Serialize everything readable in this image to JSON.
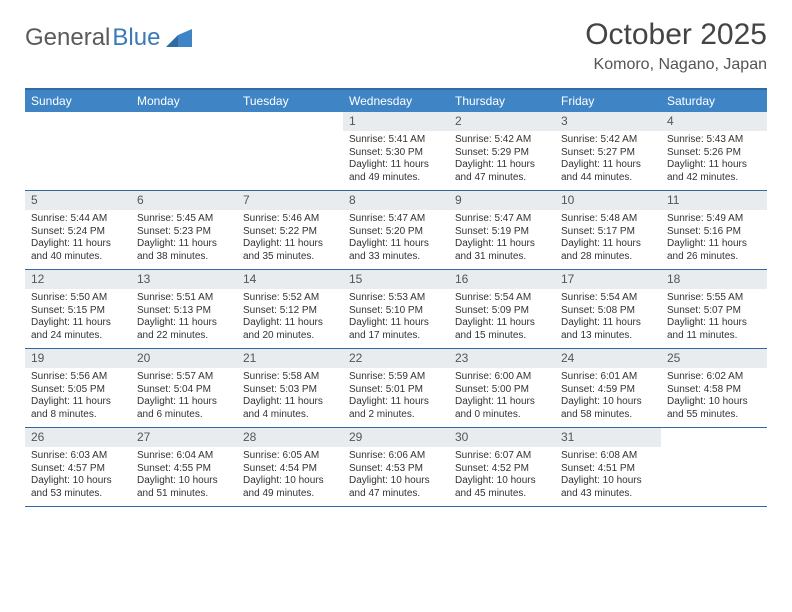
{
  "brand": {
    "word1": "General",
    "word2": "Blue"
  },
  "title": "October 2025",
  "location": "Komoro, Nagano, Japan",
  "colors": {
    "header_bg": "#3f85c6",
    "header_border": "#2f6aa3",
    "daynum_bg": "#e9ecef",
    "text": "#333333",
    "logo_gray": "#5a5a5a",
    "logo_blue": "#3a7ab8"
  },
  "days_of_week": [
    "Sunday",
    "Monday",
    "Tuesday",
    "Wednesday",
    "Thursday",
    "Friday",
    "Saturday"
  ],
  "weeks": [
    [
      {
        "n": "",
        "sr": "",
        "ss": "",
        "dl": ""
      },
      {
        "n": "",
        "sr": "",
        "ss": "",
        "dl": ""
      },
      {
        "n": "",
        "sr": "",
        "ss": "",
        "dl": ""
      },
      {
        "n": "1",
        "sr": "Sunrise: 5:41 AM",
        "ss": "Sunset: 5:30 PM",
        "dl": "Daylight: 11 hours and 49 minutes."
      },
      {
        "n": "2",
        "sr": "Sunrise: 5:42 AM",
        "ss": "Sunset: 5:29 PM",
        "dl": "Daylight: 11 hours and 47 minutes."
      },
      {
        "n": "3",
        "sr": "Sunrise: 5:42 AM",
        "ss": "Sunset: 5:27 PM",
        "dl": "Daylight: 11 hours and 44 minutes."
      },
      {
        "n": "4",
        "sr": "Sunrise: 5:43 AM",
        "ss": "Sunset: 5:26 PM",
        "dl": "Daylight: 11 hours and 42 minutes."
      }
    ],
    [
      {
        "n": "5",
        "sr": "Sunrise: 5:44 AM",
        "ss": "Sunset: 5:24 PM",
        "dl": "Daylight: 11 hours and 40 minutes."
      },
      {
        "n": "6",
        "sr": "Sunrise: 5:45 AM",
        "ss": "Sunset: 5:23 PM",
        "dl": "Daylight: 11 hours and 38 minutes."
      },
      {
        "n": "7",
        "sr": "Sunrise: 5:46 AM",
        "ss": "Sunset: 5:22 PM",
        "dl": "Daylight: 11 hours and 35 minutes."
      },
      {
        "n": "8",
        "sr": "Sunrise: 5:47 AM",
        "ss": "Sunset: 5:20 PM",
        "dl": "Daylight: 11 hours and 33 minutes."
      },
      {
        "n": "9",
        "sr": "Sunrise: 5:47 AM",
        "ss": "Sunset: 5:19 PM",
        "dl": "Daylight: 11 hours and 31 minutes."
      },
      {
        "n": "10",
        "sr": "Sunrise: 5:48 AM",
        "ss": "Sunset: 5:17 PM",
        "dl": "Daylight: 11 hours and 28 minutes."
      },
      {
        "n": "11",
        "sr": "Sunrise: 5:49 AM",
        "ss": "Sunset: 5:16 PM",
        "dl": "Daylight: 11 hours and 26 minutes."
      }
    ],
    [
      {
        "n": "12",
        "sr": "Sunrise: 5:50 AM",
        "ss": "Sunset: 5:15 PM",
        "dl": "Daylight: 11 hours and 24 minutes."
      },
      {
        "n": "13",
        "sr": "Sunrise: 5:51 AM",
        "ss": "Sunset: 5:13 PM",
        "dl": "Daylight: 11 hours and 22 minutes."
      },
      {
        "n": "14",
        "sr": "Sunrise: 5:52 AM",
        "ss": "Sunset: 5:12 PM",
        "dl": "Daylight: 11 hours and 20 minutes."
      },
      {
        "n": "15",
        "sr": "Sunrise: 5:53 AM",
        "ss": "Sunset: 5:10 PM",
        "dl": "Daylight: 11 hours and 17 minutes."
      },
      {
        "n": "16",
        "sr": "Sunrise: 5:54 AM",
        "ss": "Sunset: 5:09 PM",
        "dl": "Daylight: 11 hours and 15 minutes."
      },
      {
        "n": "17",
        "sr": "Sunrise: 5:54 AM",
        "ss": "Sunset: 5:08 PM",
        "dl": "Daylight: 11 hours and 13 minutes."
      },
      {
        "n": "18",
        "sr": "Sunrise: 5:55 AM",
        "ss": "Sunset: 5:07 PM",
        "dl": "Daylight: 11 hours and 11 minutes."
      }
    ],
    [
      {
        "n": "19",
        "sr": "Sunrise: 5:56 AM",
        "ss": "Sunset: 5:05 PM",
        "dl": "Daylight: 11 hours and 8 minutes."
      },
      {
        "n": "20",
        "sr": "Sunrise: 5:57 AM",
        "ss": "Sunset: 5:04 PM",
        "dl": "Daylight: 11 hours and 6 minutes."
      },
      {
        "n": "21",
        "sr": "Sunrise: 5:58 AM",
        "ss": "Sunset: 5:03 PM",
        "dl": "Daylight: 11 hours and 4 minutes."
      },
      {
        "n": "22",
        "sr": "Sunrise: 5:59 AM",
        "ss": "Sunset: 5:01 PM",
        "dl": "Daylight: 11 hours and 2 minutes."
      },
      {
        "n": "23",
        "sr": "Sunrise: 6:00 AM",
        "ss": "Sunset: 5:00 PM",
        "dl": "Daylight: 11 hours and 0 minutes."
      },
      {
        "n": "24",
        "sr": "Sunrise: 6:01 AM",
        "ss": "Sunset: 4:59 PM",
        "dl": "Daylight: 10 hours and 58 minutes."
      },
      {
        "n": "25",
        "sr": "Sunrise: 6:02 AM",
        "ss": "Sunset: 4:58 PM",
        "dl": "Daylight: 10 hours and 55 minutes."
      }
    ],
    [
      {
        "n": "26",
        "sr": "Sunrise: 6:03 AM",
        "ss": "Sunset: 4:57 PM",
        "dl": "Daylight: 10 hours and 53 minutes."
      },
      {
        "n": "27",
        "sr": "Sunrise: 6:04 AM",
        "ss": "Sunset: 4:55 PM",
        "dl": "Daylight: 10 hours and 51 minutes."
      },
      {
        "n": "28",
        "sr": "Sunrise: 6:05 AM",
        "ss": "Sunset: 4:54 PM",
        "dl": "Daylight: 10 hours and 49 minutes."
      },
      {
        "n": "29",
        "sr": "Sunrise: 6:06 AM",
        "ss": "Sunset: 4:53 PM",
        "dl": "Daylight: 10 hours and 47 minutes."
      },
      {
        "n": "30",
        "sr": "Sunrise: 6:07 AM",
        "ss": "Sunset: 4:52 PM",
        "dl": "Daylight: 10 hours and 45 minutes."
      },
      {
        "n": "31",
        "sr": "Sunrise: 6:08 AM",
        "ss": "Sunset: 4:51 PM",
        "dl": "Daylight: 10 hours and 43 minutes."
      },
      {
        "n": "",
        "sr": "",
        "ss": "",
        "dl": ""
      }
    ]
  ]
}
